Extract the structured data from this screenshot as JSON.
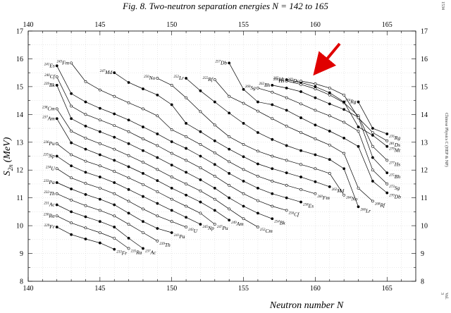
{
  "side": {
    "left_top": "1534",
    "right_top": "Vol. 3",
    "right_mid": "Chinese Physics C (HEP & NP)"
  },
  "chart_data": {
    "type": "line",
    "title": "Fig.  8. Two-neutron separation energies  N =  142 to 165",
    "xlabel": "Neutron number  N",
    "ylabel": "S",
    "ylabel_sub": "2n",
    "ylabel_unit": "(MeV)",
    "xlim": [
      140,
      167
    ],
    "ylim": [
      8,
      17
    ],
    "xticks": [
      140,
      145,
      150,
      155,
      160,
      165
    ],
    "yticks": [
      8,
      9,
      10,
      11,
      12,
      13,
      14,
      15,
      16,
      17
    ],
    "grid": true,
    "series": [
      {
        "name": "Fr",
        "mass_start": "229",
        "mass_end": "233",
        "x": [
          142,
          143,
          144,
          145,
          146
        ],
        "y": [
          9.95,
          9.68,
          9.52,
          9.38,
          9.15
        ]
      },
      {
        "name": "Ra",
        "mass_start": "230",
        "mass_end": "235",
        "x": [
          142,
          143,
          144,
          145,
          146,
          147
        ],
        "y": [
          10.35,
          10.1,
          9.92,
          9.75,
          9.55,
          9.18
        ]
      },
      {
        "name": "Ac",
        "mass_start": "231",
        "mass_end": "237",
        "x": [
          142,
          143,
          144,
          145,
          146,
          147,
          148
        ],
        "y": [
          10.75,
          10.5,
          10.32,
          10.15,
          9.95,
          9.55,
          9.18
        ]
      },
      {
        "name": "Th",
        "mass_start": "232",
        "mass_end": "239",
        "x": [
          142,
          143,
          144,
          145,
          146,
          147,
          148,
          149
        ],
        "y": [
          11.15,
          10.92,
          10.72,
          10.55,
          10.35,
          10.05,
          9.75,
          9.45
        ]
      },
      {
        "name": "Pa",
        "mass_start": "233",
        "mass_end": "241",
        "x": [
          142,
          143,
          144,
          145,
          146,
          147,
          148,
          149,
          150
        ],
        "y": [
          11.55,
          11.32,
          11.12,
          10.95,
          10.75,
          10.45,
          10.15,
          9.9,
          9.75
        ]
      },
      {
        "name": "U",
        "mass_start": "234",
        "mass_end": "243",
        "x": [
          142,
          143,
          144,
          145,
          146,
          147,
          148,
          149,
          150,
          151
        ],
        "y": [
          12.05,
          11.72,
          11.52,
          11.35,
          11.15,
          10.88,
          10.6,
          10.35,
          10.15,
          9.95
        ]
      },
      {
        "name": "Np",
        "mass_start": "235",
        "mass_end": "245",
        "x": [
          142,
          143,
          144,
          145,
          146,
          147,
          148,
          149,
          150,
          151,
          152
        ],
        "y": [
          12.5,
          12.15,
          11.92,
          11.75,
          11.55,
          11.3,
          11.05,
          10.8,
          10.55,
          10.3,
          10.05
        ]
      },
      {
        "name": "Pu",
        "mass_start": "236",
        "mass_end": "247",
        "x": [
          142,
          143,
          144,
          145,
          146,
          147,
          148,
          149,
          150,
          151,
          152,
          153
        ],
        "y": [
          12.95,
          12.55,
          12.32,
          12.15,
          11.95,
          11.72,
          11.48,
          11.22,
          10.95,
          10.7,
          10.45,
          10.05
        ]
      },
      {
        "name": "Am",
        "mass_start": "237",
        "mass_end": "249",
        "x": [
          142,
          143,
          144,
          145,
          146,
          147,
          148,
          149,
          150,
          151,
          152,
          153,
          154
        ],
        "y": [
          13.85,
          12.98,
          12.75,
          12.55,
          12.35,
          12.12,
          11.88,
          11.62,
          11.35,
          11.1,
          10.85,
          10.55,
          10.2
        ]
      },
      {
        "name": "Cm",
        "mass_start": "238",
        "mass_end": "252",
        "x": [
          142,
          143,
          144,
          145,
          146,
          147,
          148,
          149,
          150,
          151,
          152,
          153,
          154,
          155,
          156
        ],
        "y": [
          14.2,
          13.4,
          13.15,
          12.95,
          12.75,
          12.52,
          12.28,
          12.02,
          11.75,
          11.5,
          11.25,
          10.95,
          10.6,
          10.25,
          9.95
        ]
      },
      {
        "name": "Bk",
        "mass_start": "239",
        "mass_end": "254",
        "x": [
          142,
          143,
          144,
          145,
          146,
          147,
          148,
          149,
          150,
          151,
          152,
          153,
          154,
          155,
          156,
          157
        ],
        "y": [
          15.05,
          13.85,
          13.58,
          13.38,
          13.18,
          12.95,
          12.7,
          12.45,
          12.18,
          11.92,
          11.65,
          11.35,
          11.0,
          10.7,
          10.45,
          10.25
        ]
      },
      {
        "name": "Cf",
        "mass_start": "240",
        "mass_end": "256",
        "x": [
          142,
          143,
          144,
          145,
          146,
          147,
          148,
          149,
          150,
          151,
          152,
          153,
          154,
          155,
          156,
          157,
          158
        ],
        "y": [
          15.35,
          14.3,
          14.0,
          13.8,
          13.6,
          13.38,
          13.12,
          12.88,
          12.6,
          12.35,
          12.08,
          11.78,
          11.45,
          11.15,
          10.9,
          10.7,
          10.55
        ]
      },
      {
        "name": "Es",
        "mass_start": "241",
        "mass_end": "258",
        "x": [
          142,
          143,
          144,
          145,
          146,
          147,
          148,
          149,
          150,
          151,
          152,
          153,
          154,
          155,
          156,
          157,
          158,
          159
        ],
        "y": [
          15.75,
          14.75,
          14.45,
          14.22,
          14.02,
          13.8,
          13.55,
          13.3,
          13.02,
          12.78,
          12.5,
          12.2,
          11.88,
          11.6,
          11.35,
          11.15,
          11.0,
          10.85
        ]
      },
      {
        "name": "Fm",
        "mass_start": "243",
        "mass_end": "260",
        "x": [
          143,
          144,
          145,
          146,
          147,
          148,
          149,
          150,
          151,
          152,
          153,
          154,
          155,
          156,
          157,
          158,
          159,
          160
        ],
        "y": [
          15.85,
          15.18,
          14.88,
          14.65,
          14.42,
          14.2,
          13.95,
          13.45,
          13.2,
          12.92,
          12.62,
          12.3,
          12.02,
          11.78,
          11.6,
          11.45,
          11.3,
          11.15
        ]
      },
      {
        "name": "Md",
        "mass_start": "247",
        "mass_end": "262",
        "x": [
          146,
          147,
          148,
          149,
          150,
          151,
          152,
          153,
          154,
          155,
          156,
          157,
          158,
          159,
          160,
          161
        ],
        "y": [
          15.5,
          15.15,
          14.92,
          14.7,
          14.35,
          13.68,
          13.38,
          13.05,
          12.75,
          12.48,
          12.22,
          12.05,
          11.9,
          11.75,
          11.58,
          11.4
        ]
      },
      {
        "name": "No",
        "mass_start": "250",
        "mass_end": "264",
        "x": [
          149,
          150,
          151,
          152,
          153,
          154,
          155,
          156,
          157,
          158,
          159,
          160,
          161,
          162
        ],
        "y": [
          15.3,
          15.05,
          14.6,
          14.1,
          13.62,
          13.2,
          12.92,
          12.68,
          12.5,
          12.35,
          12.2,
          12.05,
          11.88,
          11.1
        ]
      },
      {
        "name": "Lr",
        "mass_start": "252",
        "mass_end": "266",
        "x": [
          151,
          152,
          153,
          154,
          155,
          156,
          157,
          158,
          159,
          160,
          161,
          162,
          163
        ],
        "y": [
          15.3,
          14.85,
          14.45,
          14.05,
          13.68,
          13.35,
          13.1,
          12.88,
          12.7,
          12.55,
          12.38,
          12.05,
          10.68
        ]
      },
      {
        "name": "Rf",
        "mass_start": "255",
        "mass_end": "268",
        "x": [
          153,
          154,
          155,
          156,
          157,
          158,
          159,
          160,
          161,
          162,
          163,
          164
        ],
        "y": [
          15.25,
          14.65,
          14.4,
          14.12,
          13.85,
          13.58,
          13.35,
          13.12,
          12.9,
          12.6,
          11.35,
          10.88
        ]
      },
      {
        "name": "Db",
        "mass_start": "257",
        "mass_end": "270",
        "x": [
          154,
          155,
          156,
          157,
          158,
          159,
          160,
          161,
          162,
          163,
          164,
          165
        ],
        "y": [
          15.85,
          14.9,
          14.45,
          14.35,
          14.15,
          13.88,
          13.62,
          13.4,
          13.15,
          12.85,
          11.6,
          11.18
        ]
      },
      {
        "name": "Sg",
        "mass_start": "260",
        "mass_end": "273",
        "x": [
          156,
          157,
          158,
          159,
          160,
          161,
          162,
          163,
          164,
          165
        ],
        "y": [
          14.95,
          14.8,
          14.6,
          14.38,
          14.15,
          13.95,
          13.72,
          13.4,
          12.0,
          11.5
        ]
      },
      {
        "name": "Bh",
        "mass_start": "262",
        "mass_end": "275",
        "x": [
          157,
          158,
          159,
          160,
          161,
          162,
          163,
          164,
          165
        ],
        "y": [
          15.05,
          14.95,
          14.82,
          14.6,
          14.38,
          14.18,
          13.9,
          12.45,
          11.9
        ]
      },
      {
        "name": "Hs",
        "mass_start": "264",
        "mass_end": "277",
        "x": [
          158,
          159,
          160,
          161,
          162,
          163,
          164,
          165
        ],
        "y": [
          15.2,
          15.08,
          14.92,
          14.7,
          14.42,
          13.95,
          12.85,
          12.35
        ]
      },
      {
        "name": "Mt",
        "mass_start": "265",
        "mass_end": "279",
        "x": [
          158,
          159,
          160,
          161,
          162,
          163,
          164,
          165
        ],
        "y": [
          15.25,
          15.15,
          15.0,
          14.78,
          14.45,
          13.55,
          13.25,
          12.85
        ]
      },
      {
        "name": "Ds",
        "mass_start": "269",
        "mass_end": "281",
        "x": [
          159,
          160,
          161,
          162,
          163,
          164,
          165
        ],
        "y": [
          15.2,
          15.1,
          14.95,
          14.7,
          13.88,
          13.35,
          13.05
        ]
      },
      {
        "name": "Rg",
        "mass_start": "274",
        "mass_end": "276",
        "x": [
          163,
          164,
          165
        ],
        "y": [
          14.45,
          13.5,
          13.3
        ]
      }
    ],
    "annotation": "red arrow pointing to 269Ds"
  }
}
